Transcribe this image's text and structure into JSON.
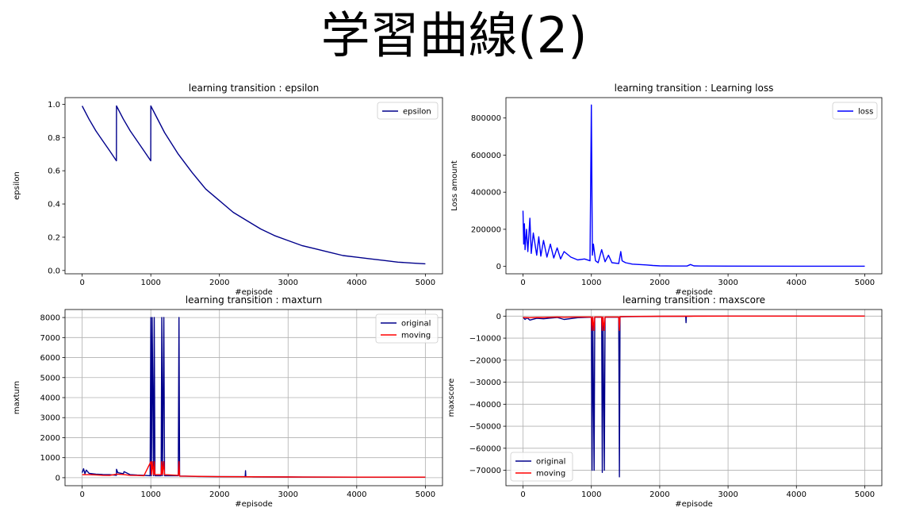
{
  "slide": {
    "title": "学習曲線(2)"
  },
  "chart_data": [
    {
      "id": "epsilon",
      "type": "line",
      "title": "learning transition : epsilon",
      "xlabel": "#episode",
      "ylabel": "epsilon",
      "xlim": [
        -250,
        5250
      ],
      "ylim": [
        -0.02,
        1.04
      ],
      "xticks": [
        0,
        1000,
        2000,
        3000,
        4000,
        5000
      ],
      "xtick_labels": [
        "0",
        "1000",
        "2000",
        "3000",
        "4000",
        "5000"
      ],
      "yticks": [
        0,
        0.2,
        0.4,
        0.6,
        0.8,
        1.0
      ],
      "ytick_labels": [
        "0.0",
        "0.2",
        "0.4",
        "0.6",
        "0.8",
        "1.0"
      ],
      "grid": false,
      "legend": "top-right",
      "series": [
        {
          "name": "epsilon",
          "color": "#00008b",
          "x": [
            0,
            100,
            200,
            300,
            400,
            499,
            500,
            600,
            700,
            800,
            900,
            999,
            1000,
            1200,
            1400,
            1600,
            1800,
            2000,
            2200,
            2400,
            2600,
            2800,
            3000,
            3200,
            3400,
            3600,
            3800,
            4000,
            4200,
            4400,
            4600,
            4800,
            5000
          ],
          "y": [
            0.99,
            0.91,
            0.84,
            0.78,
            0.72,
            0.66,
            0.99,
            0.91,
            0.84,
            0.78,
            0.72,
            0.66,
            0.99,
            0.83,
            0.7,
            0.59,
            0.49,
            0.42,
            0.35,
            0.3,
            0.25,
            0.21,
            0.18,
            0.15,
            0.13,
            0.11,
            0.09,
            0.08,
            0.07,
            0.06,
            0.05,
            0.045,
            0.04
          ]
        }
      ]
    },
    {
      "id": "loss",
      "type": "line",
      "title": "learning transition : Learning loss",
      "xlabel": "#episode",
      "ylabel": "Loss amount",
      "xlim": [
        -250,
        5250
      ],
      "ylim": [
        -40000,
        910000
      ],
      "xticks": [
        0,
        1000,
        2000,
        3000,
        4000,
        5000
      ],
      "xtick_labels": [
        "0",
        "1000",
        "2000",
        "3000",
        "4000",
        "5000"
      ],
      "yticks": [
        0,
        200000,
        400000,
        600000,
        800000
      ],
      "ytick_labels": [
        "0",
        "200000",
        "400000",
        "600000",
        "800000"
      ],
      "grid": false,
      "legend": "top-right",
      "series": [
        {
          "name": "loss",
          "color": "#0000ff",
          "x": [
            0,
            10,
            20,
            30,
            50,
            70,
            100,
            120,
            150,
            200,
            230,
            260,
            300,
            350,
            400,
            450,
            500,
            550,
            600,
            700,
            800,
            900,
            980,
            1000,
            1015,
            1030,
            1060,
            1100,
            1150,
            1200,
            1250,
            1300,
            1400,
            1430,
            1450,
            1500,
            1600,
            1700,
            1800,
            1900,
            2000,
            2200,
            2400,
            2450,
            2500,
            2600,
            3000,
            4000,
            5000
          ],
          "y": [
            300000,
            120000,
            230000,
            90000,
            200000,
            80000,
            260000,
            70000,
            180000,
            60000,
            160000,
            55000,
            140000,
            50000,
            120000,
            45000,
            100000,
            40000,
            80000,
            50000,
            35000,
            40000,
            30000,
            870000,
            60000,
            120000,
            30000,
            20000,
            90000,
            25000,
            60000,
            20000,
            15000,
            80000,
            30000,
            20000,
            12000,
            10000,
            8000,
            5000,
            3000,
            2000,
            2000,
            10000,
            3000,
            2000,
            1500,
            1000,
            1000
          ]
        }
      ]
    },
    {
      "id": "maxturn",
      "type": "line",
      "title": "learning transition : maxturn",
      "xlabel": "#episode",
      "ylabel": "maxturn",
      "xlim": [
        -250,
        5250
      ],
      "ylim": [
        -400,
        8400
      ],
      "xticks": [
        0,
        1000,
        2000,
        3000,
        4000,
        5000
      ],
      "xtick_labels": [
        "0",
        "1000",
        "2000",
        "3000",
        "4000",
        "5000"
      ],
      "yticks": [
        0,
        1000,
        2000,
        3000,
        4000,
        5000,
        6000,
        7000,
        8000
      ],
      "ytick_labels": [
        "0",
        "1000",
        "2000",
        "3000",
        "4000",
        "5000",
        "6000",
        "7000",
        "8000"
      ],
      "grid": true,
      "legend": "top-right",
      "series": [
        {
          "name": "original",
          "color": "#00008b",
          "x": [
            0,
            20,
            40,
            60,
            100,
            200,
            300,
            400,
            499,
            500,
            520,
            600,
            610,
            700,
            800,
            900,
            990,
            1000,
            1010,
            1020,
            1040,
            1050,
            1060,
            1150,
            1160,
            1170,
            1190,
            1200,
            1210,
            1400,
            1410,
            1420,
            1500,
            1700,
            2000,
            2375,
            2380,
            2385,
            2500,
            3000,
            4000,
            5000
          ],
          "y": [
            250,
            450,
            200,
            380,
            220,
            180,
            160,
            150,
            120,
            420,
            250,
            200,
            300,
            150,
            130,
            120,
            100,
            8000,
            100,
            8000,
            100,
            8000,
            100,
            100,
            8000,
            100,
            8000,
            100,
            100,
            100,
            8000,
            80,
            80,
            60,
            50,
            50,
            350,
            50,
            40,
            35,
            30,
            30
          ]
        },
        {
          "name": "moving",
          "color": "#ff0000",
          "x": [
            0,
            100,
            200,
            300,
            400,
            500,
            600,
            700,
            800,
            900,
            1000,
            1010,
            1020,
            1040,
            1050,
            1060,
            1150,
            1160,
            1170,
            1190,
            1200,
            1400,
            1410,
            1420,
            1600,
            2000,
            3000,
            4000,
            5000
          ],
          "y": [
            150,
            150,
            140,
            120,
            110,
            180,
            160,
            120,
            110,
            100,
            800,
            150,
            800,
            150,
            800,
            150,
            150,
            800,
            150,
            800,
            150,
            120,
            800,
            80,
            70,
            50,
            35,
            30,
            30
          ]
        }
      ]
    },
    {
      "id": "maxscore",
      "type": "line",
      "title": "learning transition : maxscore",
      "xlabel": "#episode",
      "ylabel": "maxscore",
      "xlim": [
        -250,
        5250
      ],
      "ylim": [
        -77000,
        3000
      ],
      "xticks": [
        0,
        1000,
        2000,
        3000,
        4000,
        5000
      ],
      "xtick_labels": [
        "0",
        "1000",
        "2000",
        "3000",
        "4000",
        "5000"
      ],
      "yticks": [
        0,
        -10000,
        -20000,
        -30000,
        -40000,
        -50000,
        -60000,
        -70000
      ],
      "ytick_labels": [
        "0",
        "−10000",
        "−20000",
        "−30000",
        "−40000",
        "−50000",
        "−60000",
        "−70000"
      ],
      "grid": true,
      "legend": "bottom-left",
      "series": [
        {
          "name": "original",
          "color": "#00008b",
          "x": [
            0,
            30,
            60,
            100,
            200,
            300,
            400,
            500,
            600,
            800,
            1000,
            1010,
            1020,
            1040,
            1050,
            1060,
            1150,
            1160,
            1170,
            1190,
            1200,
            1400,
            1410,
            1420,
            1600,
            2000,
            2380,
            2385,
            2390,
            2500,
            3000,
            4000,
            5000
          ],
          "y": [
            -500,
            -1500,
            -800,
            -1800,
            -1000,
            -1200,
            -900,
            -600,
            -1500,
            -700,
            -500,
            -70000,
            -500,
            -70000,
            -500,
            -500,
            -500,
            -71000,
            -500,
            -70000,
            -500,
            -500,
            -73000,
            -300,
            -200,
            -100,
            -100,
            -3000,
            -100,
            0,
            0,
            0,
            0
          ]
        },
        {
          "name": "moving",
          "color": "#ff0000",
          "x": [
            0,
            100,
            200,
            300,
            400,
            500,
            600,
            800,
            1000,
            1010,
            1020,
            1040,
            1050,
            1060,
            1150,
            1160,
            1170,
            1190,
            1200,
            1400,
            1410,
            1420,
            1600,
            2000,
            3000,
            4000,
            5000
          ],
          "y": [
            -600,
            -700,
            -600,
            -600,
            -500,
            -400,
            -500,
            -400,
            -400,
            -6500,
            -400,
            -6500,
            -400,
            -400,
            -400,
            -6500,
            -400,
            -6500,
            -400,
            -400,
            -6500,
            -200,
            -150,
            -80,
            0,
            0,
            0
          ]
        }
      ]
    }
  ]
}
